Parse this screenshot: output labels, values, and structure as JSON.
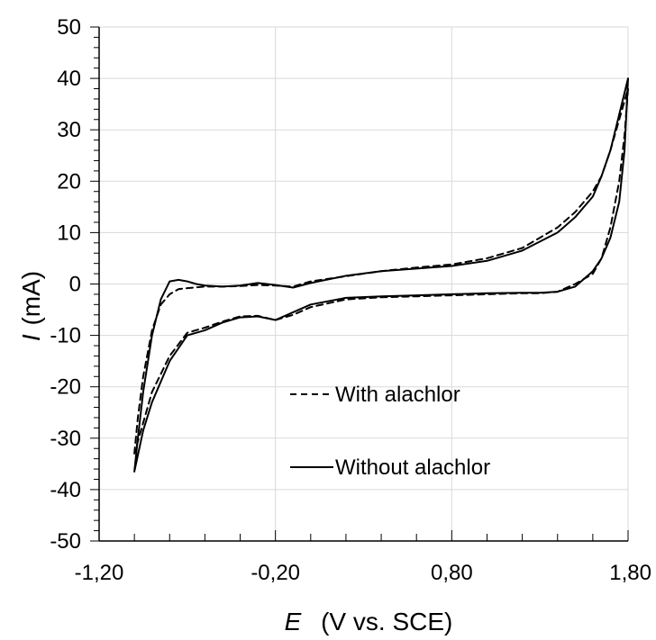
{
  "chart_data": {
    "type": "line",
    "title": "",
    "xlabel": {
      "symbol": "E",
      "rest": "(V vs. SCE)"
    },
    "ylabel": {
      "symbol": "I",
      "rest": "(mA)"
    },
    "xlim": [
      -1.2,
      1.8
    ],
    "ylim": [
      -50,
      50
    ],
    "x_ticks": [
      -1.2,
      -0.2,
      0.8,
      1.8
    ],
    "x_tick_labels": [
      "-1,20",
      "-0,20",
      "0,80",
      "1,80"
    ],
    "y_ticks": [
      50,
      40,
      30,
      20,
      10,
      0,
      -10,
      -20,
      -30,
      -40,
      -50
    ],
    "y_tick_labels": [
      "50",
      "40",
      "30",
      "20",
      "10",
      "0",
      "-10",
      "-20",
      "-30",
      "-40",
      "-50"
    ],
    "grid": true,
    "legend_position": "lower-center",
    "series": [
      {
        "name": "With alachlor",
        "style": "dashed",
        "color": "#000000",
        "x": [
          -1.0,
          -0.98,
          -0.95,
          -0.9,
          -0.85,
          -0.8,
          -0.75,
          -0.7,
          -0.6,
          -0.5,
          -0.4,
          -0.3,
          -0.2,
          -0.1,
          0.0,
          0.2,
          0.4,
          0.6,
          0.8,
          1.0,
          1.2,
          1.4,
          1.5,
          1.6,
          1.65,
          1.7,
          1.75,
          1.8,
          1.78,
          1.75,
          1.7,
          1.65,
          1.6,
          1.5,
          1.4,
          1.3,
          1.2,
          1.0,
          0.8,
          0.6,
          0.4,
          0.2,
          0.0,
          -0.1,
          -0.2,
          -0.3,
          -0.4,
          -0.5,
          -0.6,
          -0.7,
          -0.8,
          -0.9,
          -0.95,
          -1.0
        ],
        "y": [
          -33,
          -26,
          -18,
          -9,
          -4,
          -2,
          -1,
          -0.8,
          -0.5,
          -0.5,
          -0.4,
          -0.2,
          -0.3,
          -0.5,
          0.5,
          1.5,
          2.5,
          3.2,
          3.8,
          5,
          7,
          11,
          14,
          18,
          21,
          26,
          32,
          38,
          29,
          20,
          11,
          5,
          2,
          0,
          -1.5,
          -1.8,
          -1.8,
          -2,
          -2.2,
          -2.4,
          -2.6,
          -3,
          -4.5,
          -6,
          -7,
          -6.2,
          -6.3,
          -7.3,
          -8.5,
          -9.5,
          -14,
          -21,
          -27,
          -33
        ]
      },
      {
        "name": "Without alachlor",
        "style": "solid",
        "color": "#000000",
        "x": [
          -1.0,
          -0.98,
          -0.95,
          -0.9,
          -0.85,
          -0.8,
          -0.75,
          -0.7,
          -0.65,
          -0.6,
          -0.5,
          -0.4,
          -0.3,
          -0.2,
          -0.1,
          0.0,
          0.2,
          0.4,
          0.6,
          0.8,
          1.0,
          1.2,
          1.4,
          1.5,
          1.6,
          1.65,
          1.7,
          1.75,
          1.8,
          1.78,
          1.75,
          1.7,
          1.65,
          1.6,
          1.5,
          1.4,
          1.3,
          1.2,
          1.0,
          0.8,
          0.6,
          0.4,
          0.2,
          0.0,
          -0.1,
          -0.2,
          -0.3,
          -0.4,
          -0.5,
          -0.6,
          -0.7,
          -0.8,
          -0.9,
          -0.95,
          -1.0
        ],
        "y": [
          -36.5,
          -30,
          -21,
          -10,
          -3,
          0.5,
          0.8,
          0.5,
          0,
          -0.3,
          -0.5,
          -0.3,
          0.2,
          -0.2,
          -0.7,
          0.2,
          1.6,
          2.5,
          3.0,
          3.5,
          4.5,
          6.5,
          10,
          13,
          17,
          21,
          26,
          33,
          40,
          26,
          16,
          9,
          5,
          2.5,
          -0.5,
          -1.5,
          -1.7,
          -1.7,
          -1.8,
          -2,
          -2.2,
          -2.4,
          -2.7,
          -4,
          -5.5,
          -7,
          -6.3,
          -6.5,
          -7.5,
          -9,
          -10,
          -15,
          -23,
          -28.5,
          -36.5
        ]
      }
    ]
  }
}
